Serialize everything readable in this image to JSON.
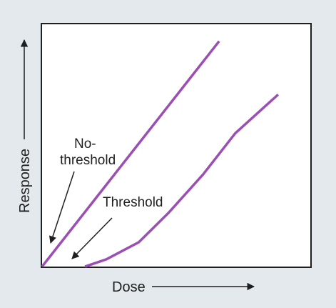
{
  "colors": {
    "background": "#E3E9EC",
    "plot_area": "#FFFFFF",
    "frame": "#1F1F1F",
    "series": "#9B4FB5",
    "text": "#1F1F1F"
  },
  "chart_data": {
    "type": "line",
    "title": "",
    "xlabel": "Dose",
    "ylabel": "Response",
    "x_ticks": false,
    "y_ticks": false,
    "grid": false,
    "xlim": [
      0,
      100
    ],
    "ylim": [
      0,
      100
    ],
    "series": [
      {
        "points": [
          [
            0,
            0
          ],
          [
            66,
            93
          ]
        ]
      },
      {
        "points": [
          [
            16,
            0
          ],
          [
            24,
            3
          ],
          [
            36,
            10
          ],
          [
            47,
            22
          ],
          [
            60,
            38
          ],
          [
            72,
            55
          ],
          [
            88,
            71
          ]
        ]
      }
    ],
    "annotations": [
      {
        "text": "No-\nthreshold",
        "lines": [
          "No-",
          "threshold"
        ],
        "target": "series-0-origin"
      },
      {
        "text": "Threshold",
        "lines": [
          "Threshold"
        ],
        "target": "series-1-start"
      }
    ]
  }
}
